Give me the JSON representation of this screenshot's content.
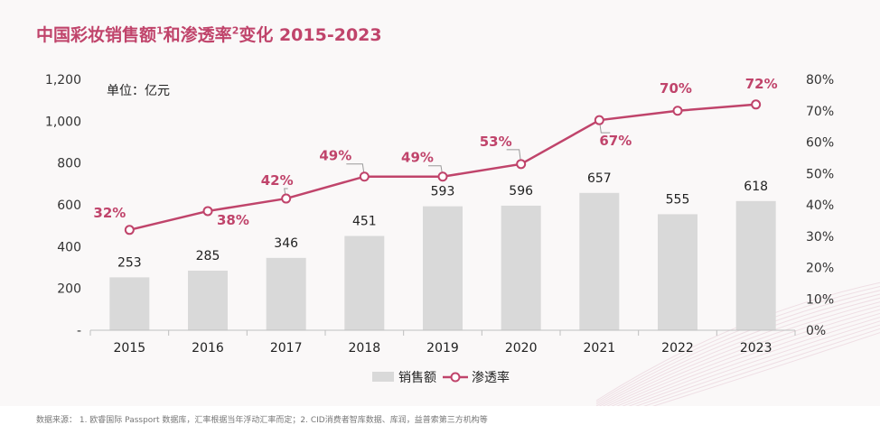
{
  "title": {
    "part1": "中国彩妆销售额",
    "sup1": "1",
    "part2": "和渗透率",
    "sup2": "2",
    "part3": "变化 2015-2023"
  },
  "source_text": "数据来源： 1. 欧睿国际 Passport 数据库，汇率根据当年浮动汇率而定；2. CID消费者智库数据、库润，益普索第三方机构等",
  "colors": {
    "accent": "#c0446b",
    "bar": "#d9d9d9"
  },
  "chart_data": {
    "type": "bar",
    "categories": [
      "2015",
      "2016",
      "2017",
      "2018",
      "2019",
      "2020",
      "2021",
      "2022",
      "2023"
    ],
    "unit_label": "单位：亿元",
    "series": [
      {
        "name": "销售额",
        "type": "bar",
        "axis": "left",
        "values": [
          253,
          285,
          346,
          451,
          593,
          596,
          657,
          555,
          618
        ],
        "labels": [
          "253",
          "285",
          "346",
          "451",
          "593",
          "596",
          "657",
          "555",
          "618"
        ]
      },
      {
        "name": "渗透率",
        "type": "line",
        "axis": "right",
        "values": [
          32,
          38,
          42,
          49,
          49,
          53,
          67,
          70,
          72
        ],
        "labels": [
          "32%",
          "38%",
          "42%",
          "49%",
          "49%",
          "53%",
          "67%",
          "70%",
          "72%"
        ]
      }
    ],
    "y_left": {
      "range": [
        0,
        1200
      ],
      "ticks": [
        0,
        200,
        400,
        600,
        800,
        1000,
        1200
      ],
      "tick_labels": [
        "-",
        "200",
        "400",
        "600",
        "800",
        "1,000",
        "1,200"
      ]
    },
    "y_right": {
      "range": [
        0,
        80
      ],
      "ticks": [
        0,
        10,
        20,
        30,
        40,
        50,
        60,
        70,
        80
      ],
      "tick_labels": [
        "0%",
        "10%",
        "20%",
        "30%",
        "40%",
        "50%",
        "60%",
        "70%",
        "80%"
      ]
    },
    "grid": false,
    "legend_position": "bottom-center"
  }
}
